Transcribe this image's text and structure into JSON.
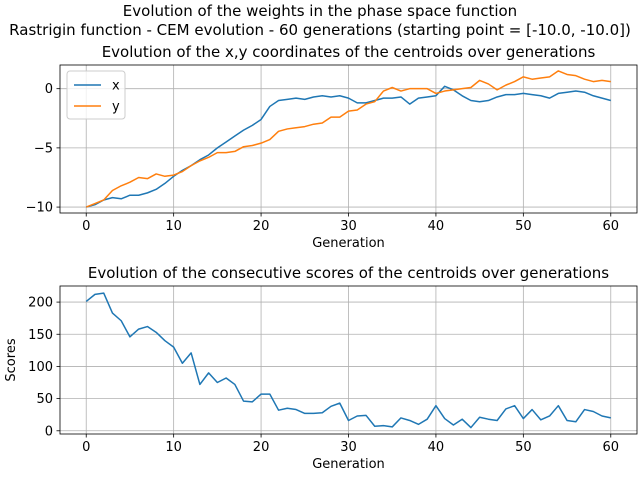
{
  "figure": {
    "suptitle_line1": "Evolution of the weights in the phase space  function",
    "suptitle_line2": "Rastrigin function - CEM evolution - 60 generations (starting point = [-10.0, -10.0])"
  },
  "chart_data": [
    {
      "type": "line",
      "title": "Evolution of the x,y coordinates of the centroids over generations",
      "xlabel": "Generation",
      "ylabel": "",
      "xlim": [
        -3,
        63
      ],
      "ylim": [
        -10.5,
        2.0
      ],
      "xticks": [
        0,
        10,
        20,
        30,
        40,
        50,
        60
      ],
      "yticks": [
        -10,
        -5,
        0
      ],
      "grid": true,
      "legend_position": "upper-left",
      "x": [
        0,
        1,
        2,
        3,
        4,
        5,
        6,
        7,
        8,
        9,
        10,
        11,
        12,
        13,
        14,
        15,
        16,
        17,
        18,
        19,
        20,
        21,
        22,
        23,
        24,
        25,
        26,
        27,
        28,
        29,
        30,
        31,
        32,
        33,
        34,
        35,
        36,
        37,
        38,
        39,
        40,
        41,
        42,
        43,
        44,
        45,
        46,
        47,
        48,
        49,
        50,
        51,
        52,
        53,
        54,
        55,
        56,
        57,
        58,
        59,
        60
      ],
      "series": [
        {
          "name": "x",
          "color": "#1f77b4",
          "values": [
            -10.0,
            -9.8,
            -9.4,
            -9.2,
            -9.3,
            -9.0,
            -9.0,
            -8.8,
            -8.5,
            -8.0,
            -7.4,
            -6.9,
            -6.5,
            -6.0,
            -5.6,
            -5.0,
            -4.5,
            -4.0,
            -3.5,
            -3.1,
            -2.6,
            -1.5,
            -1.0,
            -0.9,
            -0.8,
            -0.9,
            -0.7,
            -0.6,
            -0.7,
            -0.6,
            -0.8,
            -1.2,
            -1.2,
            -1.0,
            -0.8,
            -0.8,
            -0.7,
            -1.3,
            -0.8,
            -0.7,
            -0.6,
            0.2,
            -0.1,
            -0.6,
            -1.0,
            -1.1,
            -1.0,
            -0.7,
            -0.5,
            -0.5,
            -0.4,
            -0.5,
            -0.6,
            -0.8,
            -0.4,
            -0.3,
            -0.2,
            -0.3,
            -0.6,
            -0.8,
            -1.0
          ]
        },
        {
          "name": "y",
          "color": "#ff7f0e",
          "values": [
            -10.0,
            -9.7,
            -9.4,
            -8.6,
            -8.2,
            -7.9,
            -7.5,
            -7.6,
            -7.2,
            -7.4,
            -7.3,
            -7.0,
            -6.5,
            -6.1,
            -5.8,
            -5.4,
            -5.4,
            -5.3,
            -4.9,
            -4.8,
            -4.6,
            -4.3,
            -3.6,
            -3.4,
            -3.3,
            -3.2,
            -3.0,
            -2.9,
            -2.4,
            -2.4,
            -1.9,
            -1.8,
            -1.3,
            -1.1,
            -0.2,
            0.1,
            -0.2,
            0.0,
            0.0,
            0.0,
            -0.4,
            -0.2,
            -0.1,
            0.0,
            0.1,
            0.7,
            0.4,
            -0.1,
            0.3,
            0.6,
            1.0,
            0.8,
            0.9,
            1.0,
            1.5,
            1.2,
            1.1,
            0.8,
            0.6,
            0.7,
            0.6
          ]
        }
      ]
    },
    {
      "type": "line",
      "title": "Evolution of the consecutive scores of the centroids over generations",
      "xlabel": "Generation",
      "ylabel": "Scores",
      "xlim": [
        -3,
        63
      ],
      "ylim": [
        -5,
        225
      ],
      "xticks": [
        0,
        10,
        20,
        30,
        40,
        50,
        60
      ],
      "yticks": [
        0,
        50,
        100,
        150,
        200
      ],
      "grid": true,
      "x": [
        0,
        1,
        2,
        3,
        4,
        5,
        6,
        7,
        8,
        9,
        10,
        11,
        12,
        13,
        14,
        15,
        16,
        17,
        18,
        19,
        20,
        21,
        22,
        23,
        24,
        25,
        26,
        27,
        28,
        29,
        30,
        31,
        32,
        33,
        34,
        35,
        36,
        37,
        38,
        39,
        40,
        41,
        42,
        43,
        44,
        45,
        46,
        47,
        48,
        49,
        50,
        51,
        52,
        53,
        54,
        55,
        56,
        57,
        58,
        59,
        60
      ],
      "series": [
        {
          "name": "scores",
          "color": "#1f77b4",
          "values": [
            201,
            212,
            214,
            183,
            171,
            146,
            158,
            162,
            153,
            140,
            130,
            105,
            121,
            72,
            90,
            75,
            82,
            72,
            46,
            45,
            57,
            57,
            32,
            35,
            33,
            27,
            27,
            28,
            38,
            43,
            16,
            23,
            24,
            7,
            8,
            6,
            20,
            16,
            10,
            18,
            39,
            19,
            9,
            18,
            5,
            21,
            18,
            16,
            34,
            39,
            19,
            33,
            17,
            23,
            39,
            16,
            14,
            33,
            30,
            23,
            20
          ]
        }
      ]
    }
  ]
}
